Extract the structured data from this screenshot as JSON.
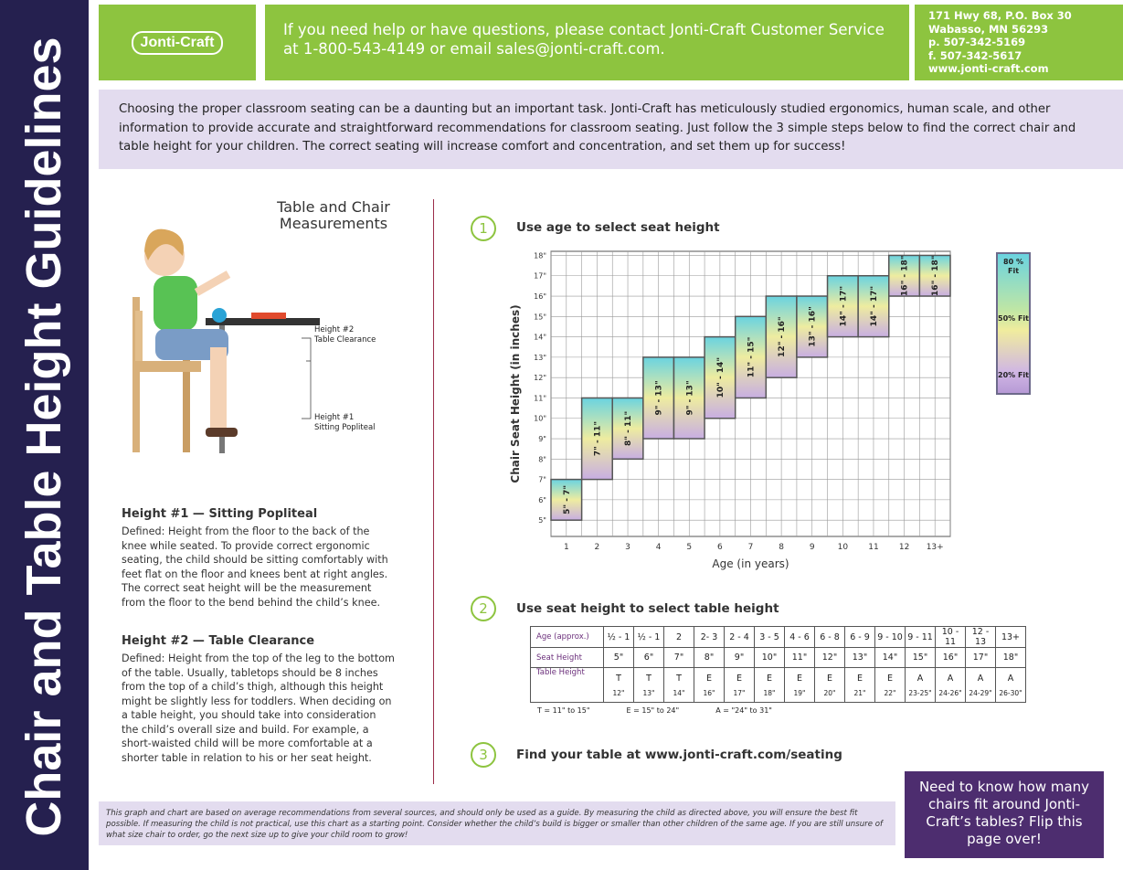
{
  "sidebar_title": "Chair and Table Height Guidelines",
  "header": {
    "logo": "Jonti-Craft",
    "contact": "If you need help or have questions, please contact Jonti-Craft Customer Service at 1-800-543-4149 or email sales@jonti-craft.com.",
    "address": [
      "171 Hwy 68, P.O. Box 30",
      "Wabasso, MN 56293",
      "p. 507-342-5169",
      "f. 507-342-5617",
      "www.jonti-craft.com"
    ]
  },
  "intro": "Choosing the proper classroom seating can be a daunting but an important task. Jonti-Craft has meticulously studied ergonomics, human scale, and other information to provide accurate and straightforward recommendations for classroom seating. Just follow the 3 simple steps below to find the correct chair and table height for your children. The correct seating will increase comfort and concentration, and set them up for success!",
  "measurements": {
    "title": "Table and Chair Measurements",
    "label2": [
      "Height #2",
      "Table Clearance"
    ],
    "label1": [
      "Height #1",
      "Sitting Popliteal"
    ]
  },
  "height1": {
    "heading": "Height #1 — Sitting Popliteal",
    "text": "Defined: Height from the floor to the back of the knee while seated. To provide correct ergonomic seating, the child should be sitting comfortably with feet flat on the floor and knees bent at right angles. The correct seat height will be the measurement from the floor to the bend behind the child’s knee."
  },
  "height2": {
    "heading": "Height #2 — Table Clearance",
    "text": "Defined: Height from the top of the leg to the bottom of the table. Usually, tabletops should be 8 inches from the top of a child’s thigh, although this height might be slightly less for toddlers. When deciding on a table height,  you should take into consideration the child’s overall size and build. For example, a short-waisted child will be more comfortable at a shorter table in relation to his or her seat height."
  },
  "steps": [
    {
      "number": "1",
      "title": "Use age to select seat height"
    },
    {
      "number": "2",
      "title": "Use seat height to select table height"
    },
    {
      "number": "3",
      "title": "Find your table at www.jonti-craft.com/seating"
    }
  ],
  "chart_data": {
    "type": "range-bar",
    "x_label": "Age (in years)",
    "y_label": "Chair Seat Height  (in inches)",
    "categories": [
      "1",
      "2",
      "3",
      "4",
      "5",
      "6",
      "7",
      "8",
      "9",
      "10",
      "11",
      "12",
      "13+"
    ],
    "low": [
      5,
      7,
      8,
      9,
      9,
      10,
      11,
      12,
      13,
      14,
      14,
      16,
      16
    ],
    "high": [
      7,
      11,
      11,
      13,
      13,
      14,
      15,
      16,
      16,
      17,
      17,
      18,
      18
    ],
    "value_labels": [
      "5\" - 7\"",
      "7\" - 11\"",
      "8\" - 11\"",
      "9\" - 13\"",
      "9\" - 13\"",
      "10\" - 14\"",
      "11\" - 15\"",
      "12\" - 16\"",
      "13\" - 16\"",
      "14\" - 17\"",
      "14\" - 17\"",
      "16\" - 18\"",
      "16\" - 18\""
    ],
    "ylim": [
      4.2,
      18.2
    ],
    "yticks": [
      {
        "value": 5,
        "label": "5\""
      },
      {
        "value": 6,
        "label": "6\""
      },
      {
        "value": 7,
        "label": "7\""
      },
      {
        "value": 8,
        "label": "8\""
      },
      {
        "value": 9,
        "label": "9\""
      },
      {
        "value": 10,
        "label": "10\""
      },
      {
        "value": 11,
        "label": "11\""
      },
      {
        "value": 12,
        "label": "12\""
      },
      {
        "value": 13,
        "label": "13\""
      },
      {
        "value": 14,
        "label": "14\""
      },
      {
        "value": 15,
        "label": "15\""
      },
      {
        "value": 16,
        "label": "16\""
      },
      {
        "value": 17,
        "label": "17\""
      },
      {
        "value": 18,
        "label": "18\""
      }
    ],
    "grid": true,
    "fit_legend": [
      "80 % Fit",
      "50% Fit",
      "20% Fit"
    ]
  },
  "table": {
    "row_labels": [
      "Age (approx.)",
      "Seat Height",
      "Table Height"
    ],
    "ages": [
      "½ - 1",
      "½ - 1",
      "2",
      "2- 3",
      "2 - 4",
      "3 - 5",
      "4 - 6",
      "6 - 8",
      "6 - 9",
      "9 - 10",
      "9 - 11",
      "10 - 11",
      "12 - 13",
      "13+"
    ],
    "seat": [
      "5\"",
      "6\"",
      "7\"",
      "8\"",
      "9\"",
      "10\"",
      "11\"",
      "12\"",
      "13\"",
      "14\"",
      "15\"",
      "16\"",
      "17\"",
      "18\""
    ],
    "table_letters": [
      "T",
      "T",
      "T",
      "E",
      "E",
      "E",
      "E",
      "E",
      "E",
      "E",
      "A",
      "A",
      "A",
      "A"
    ],
    "table_inches": [
      "12\"",
      "13\"",
      "14\"",
      "16\"",
      "17\"",
      "18\"",
      "19\"",
      "20\"",
      "21\"",
      "22\"",
      "23-25\"",
      "24-26\"",
      "24-29\"",
      "26-30\""
    ],
    "key": [
      "T = 11\" to 15\"",
      "E = 15\" to 24\"",
      "A = \"24\" to 31\""
    ]
  },
  "footer": "This graph and chart are based on average recommendations from several sources, and should only be used as a guide. By measuring the child as directed above, you will ensure the best fit possible. If measuring the child is not practical, use this chart as a starting point. Consider whether the child’s build is bigger or smaller than other children of the same age. If you are still unsure of what size chair to order, go the next size up to give your child room to grow!",
  "callout": "Need to know how many chairs fit around Jonti-Craft’s tables? Flip this page over!"
}
